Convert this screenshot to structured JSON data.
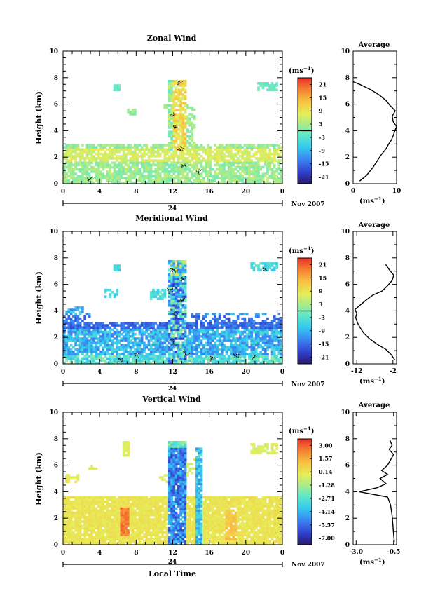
{
  "shared": {
    "xlabel": "Local Time",
    "ylabel": "Height (km)",
    "unit_label": "(ms",
    "unit_exp": "−1",
    "avg_title": "Average",
    "day_label": "24",
    "month_label": "Nov 2007",
    "x_ticks": [
      "0",
      "4",
      "8",
      "12",
      "16",
      "20",
      "0"
    ],
    "y_ticks": [
      "0",
      "2",
      "4",
      "6",
      "8",
      "10"
    ],
    "avg_y_ticks": [
      "0",
      "2",
      "4",
      "6",
      "8",
      "10"
    ]
  },
  "chart_data": [
    {
      "type": "heatmap",
      "title": "Zonal Wind",
      "xlabel": "",
      "ylabel": "Height (km)",
      "xlim": [
        0,
        24
      ],
      "ylim": [
        0,
        10
      ],
      "colorbar_label": "(ms−1)",
      "colorbar_ticks": [
        "21",
        "15",
        "9",
        "3",
        "-3",
        "-9",
        "-15",
        "-21"
      ],
      "colorbar_range": [
        -24,
        24
      ],
      "zero_line_value": 0,
      "wind_kind": "zonal",
      "average": {
        "xlim": [
          0,
          10
        ],
        "x_ticks": [
          "0",
          "10"
        ],
        "profile_x": [
          1.5,
          3.0,
          4.5,
          5.5,
          6.5,
          7.5,
          8.2,
          8.8,
          9.3,
          9.6,
          10.0,
          9.2,
          9.0,
          9.7,
          8.5,
          7.5,
          6.0,
          4.0,
          1.5,
          0.0
        ],
        "profile_y": [
          0.2,
          0.6,
          1.2,
          1.7,
          2.2,
          2.6,
          3.0,
          3.3,
          3.7,
          4.0,
          4.3,
          4.7,
          5.1,
          5.5,
          5.9,
          6.3,
          6.7,
          7.1,
          7.5,
          7.7
        ]
      }
    },
    {
      "type": "heatmap",
      "title": "Meridional Wind",
      "xlabel": "",
      "ylabel": "Height (km)",
      "xlim": [
        0,
        24
      ],
      "ylim": [
        0,
        10
      ],
      "colorbar_label": "(ms−1)",
      "colorbar_ticks": [
        "21",
        "15",
        "9",
        "3",
        "-3",
        "-9",
        "-15",
        "-21"
      ],
      "colorbar_range": [
        -24,
        24
      ],
      "zero_line_value": 0,
      "wind_kind": "meridional",
      "average": {
        "xlim": [
          -13,
          -1
        ],
        "x_ticks": [
          "-12",
          "-2"
        ],
        "profile_x": [
          -1.5,
          -2.5,
          -4.0,
          -6.5,
          -8.5,
          -10.0,
          -11.0,
          -11.8,
          -12.3,
          -12.0,
          -12.5,
          -11.2,
          -9.5,
          -7.5,
          -5.0,
          -3.5,
          -2.2,
          -1.8,
          -3.0,
          -4.0
        ],
        "profile_y": [
          0.3,
          0.7,
          1.1,
          1.5,
          1.9,
          2.3,
          2.7,
          3.1,
          3.5,
          3.8,
          4.1,
          4.4,
          4.8,
          5.2,
          5.5,
          5.9,
          6.3,
          6.7,
          7.1,
          7.5
        ]
      }
    },
    {
      "type": "heatmap",
      "title": "Vertical Wind",
      "xlabel": "Local Time",
      "ylabel": "Height (km)",
      "xlim": [
        0,
        24
      ],
      "ylim": [
        0,
        10
      ],
      "colorbar_label": "(ms−1)",
      "colorbar_ticks": [
        "3.00",
        "1.57",
        "0.14",
        "-1.28",
        "-2.71",
        "-4.14",
        "-5.57",
        "-7.00"
      ],
      "colorbar_range": [
        -7.7,
        3.7
      ],
      "zero_line_value": null,
      "wind_kind": "vertical",
      "average": {
        "xlim": [
          -3.2,
          -0.3
        ],
        "x_ticks": [
          "-3.0",
          "-0.5"
        ],
        "profile_x": [
          -0.45,
          -0.5,
          -0.55,
          -0.6,
          -0.7,
          -0.9,
          -2.8,
          -1.6,
          -1.0,
          -1.4,
          -0.9,
          -1.3,
          -0.9,
          -0.7,
          -0.5,
          -0.8,
          -0.6,
          -0.75
        ],
        "profile_y": [
          0.2,
          0.8,
          1.5,
          2.2,
          3.0,
          3.6,
          4.0,
          4.3,
          4.6,
          5.0,
          5.3,
          5.6,
          6.0,
          6.4,
          6.8,
          7.2,
          7.5,
          7.9
        ]
      }
    }
  ]
}
